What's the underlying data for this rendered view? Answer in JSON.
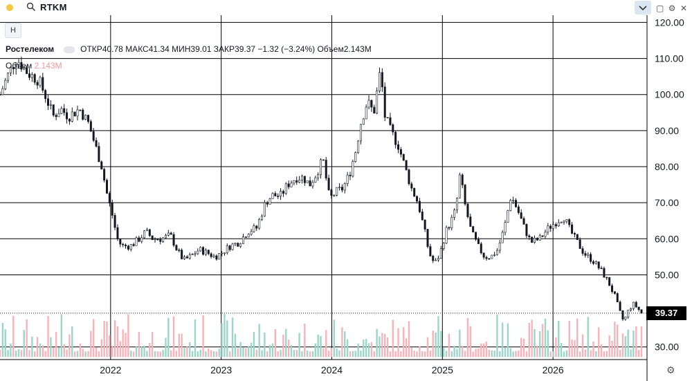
{
  "toolbar": {
    "ticker": "RTKM",
    "dot_color": "#f5c842"
  },
  "header": {
    "button_label": "H",
    "name": "Ростелеком",
    "open_label": "ОТКР",
    "open_value": "40.78",
    "high_label": "МАКС",
    "high_value": "41.34",
    "low_label": "МИН",
    "low_value": "39.01",
    "close_label": "ЗАКР",
    "close_value": "39.37",
    "change": "−1.32 (−3.24%)",
    "volume_label": "Объем",
    "volume_value": "2.143M"
  },
  "volume_legend": {
    "label": "Объем",
    "value": "2.143M"
  },
  "current_price": "39.37",
  "colors": {
    "up": "#089981",
    "down": "#f23645",
    "vol_up": "#9bd6c9",
    "vol_down": "#f7b3b9",
    "grid": "#000000"
  },
  "chart_data": {
    "type": "candlestick",
    "title": "",
    "xlabel": "",
    "ylabel": "",
    "ylim": [
      26.5,
      122
    ],
    "y_ticks": [
      "120.00",
      "110.00",
      "100.00",
      "90.00",
      "80.00",
      "70.00",
      "60.00",
      "50.00",
      "30.00"
    ],
    "y_tick_values": [
      120,
      110,
      100,
      90,
      80,
      70,
      60,
      50,
      30
    ],
    "x_ticks": [
      "2022",
      "2023",
      "2024",
      "2025",
      "2026"
    ],
    "x_tick_values": [
      2022.0,
      2023.0,
      2024.0,
      2025.0,
      2026.0
    ],
    "x_range": [
      2021.0,
      2026.85
    ],
    "last_price": 39.37,
    "price_path": [
      [
        2021.0,
        100
      ],
      [
        2021.08,
        106
      ],
      [
        2021.15,
        110
      ],
      [
        2021.25,
        106
      ],
      [
        2021.35,
        104
      ],
      [
        2021.42,
        99
      ],
      [
        2021.48,
        94
      ],
      [
        2021.55,
        96
      ],
      [
        2021.62,
        94
      ],
      [
        2021.72,
        96
      ],
      [
        2021.8,
        92
      ],
      [
        2021.86,
        86
      ],
      [
        2021.92,
        80
      ],
      [
        2021.97,
        72
      ],
      [
        2022.02,
        66
      ],
      [
        2022.06,
        60
      ],
      [
        2022.1,
        58
      ],
      [
        2022.18,
        58
      ],
      [
        2022.26,
        60
      ],
      [
        2022.32,
        62
      ],
      [
        2022.38,
        60
      ],
      [
        2022.46,
        60
      ],
      [
        2022.54,
        61
      ],
      [
        2022.6,
        57
      ],
      [
        2022.66,
        54
      ],
      [
        2022.72,
        55
      ],
      [
        2022.8,
        57
      ],
      [
        2022.88,
        56
      ],
      [
        2022.94,
        55
      ],
      [
        2023.0,
        56
      ],
      [
        2023.08,
        58
      ],
      [
        2023.16,
        59
      ],
      [
        2023.24,
        62
      ],
      [
        2023.32,
        63
      ],
      [
        2023.4,
        70
      ],
      [
        2023.46,
        72
      ],
      [
        2023.54,
        72
      ],
      [
        2023.6,
        75
      ],
      [
        2023.68,
        77
      ],
      [
        2023.74,
        77
      ],
      [
        2023.8,
        75
      ],
      [
        2023.86,
        78
      ],
      [
        2023.92,
        82
      ],
      [
        2023.98,
        71
      ],
      [
        2024.04,
        73
      ],
      [
        2024.1,
        74
      ],
      [
        2024.16,
        78
      ],
      [
        2024.22,
        85
      ],
      [
        2024.26,
        92
      ],
      [
        2024.32,
        98
      ],
      [
        2024.38,
        95
      ],
      [
        2024.44,
        107
      ],
      [
        2024.48,
        94
      ],
      [
        2024.53,
        90
      ],
      [
        2024.6,
        86
      ],
      [
        2024.66,
        80
      ],
      [
        2024.72,
        74
      ],
      [
        2024.78,
        70
      ],
      [
        2024.84,
        62
      ],
      [
        2024.88,
        56
      ],
      [
        2024.93,
        53
      ],
      [
        2024.98,
        56
      ],
      [
        2025.03,
        62
      ],
      [
        2025.08,
        65
      ],
      [
        2025.12,
        68
      ],
      [
        2025.16,
        78
      ],
      [
        2025.2,
        70
      ],
      [
        2025.26,
        62
      ],
      [
        2025.32,
        58
      ],
      [
        2025.38,
        55
      ],
      [
        2025.44,
        55
      ],
      [
        2025.5,
        57
      ],
      [
        2025.56,
        63
      ],
      [
        2025.62,
        72
      ],
      [
        2025.68,
        68
      ],
      [
        2025.74,
        63
      ],
      [
        2025.8,
        59
      ],
      [
        2025.88,
        60
      ],
      [
        2025.96,
        63
      ],
      [
        2026.04,
        65
      ],
      [
        2026.1,
        66
      ],
      [
        2026.16,
        62
      ],
      [
        2026.22,
        59
      ],
      [
        2026.28,
        56
      ],
      [
        2026.36,
        54
      ],
      [
        2026.44,
        51
      ],
      [
        2026.5,
        48
      ],
      [
        2026.56,
        44
      ],
      [
        2026.6,
        40
      ],
      [
        2026.64,
        37
      ],
      [
        2026.68,
        40
      ],
      [
        2026.72,
        42
      ],
      [
        2026.76,
        41
      ],
      [
        2026.8,
        39.37
      ]
    ]
  }
}
